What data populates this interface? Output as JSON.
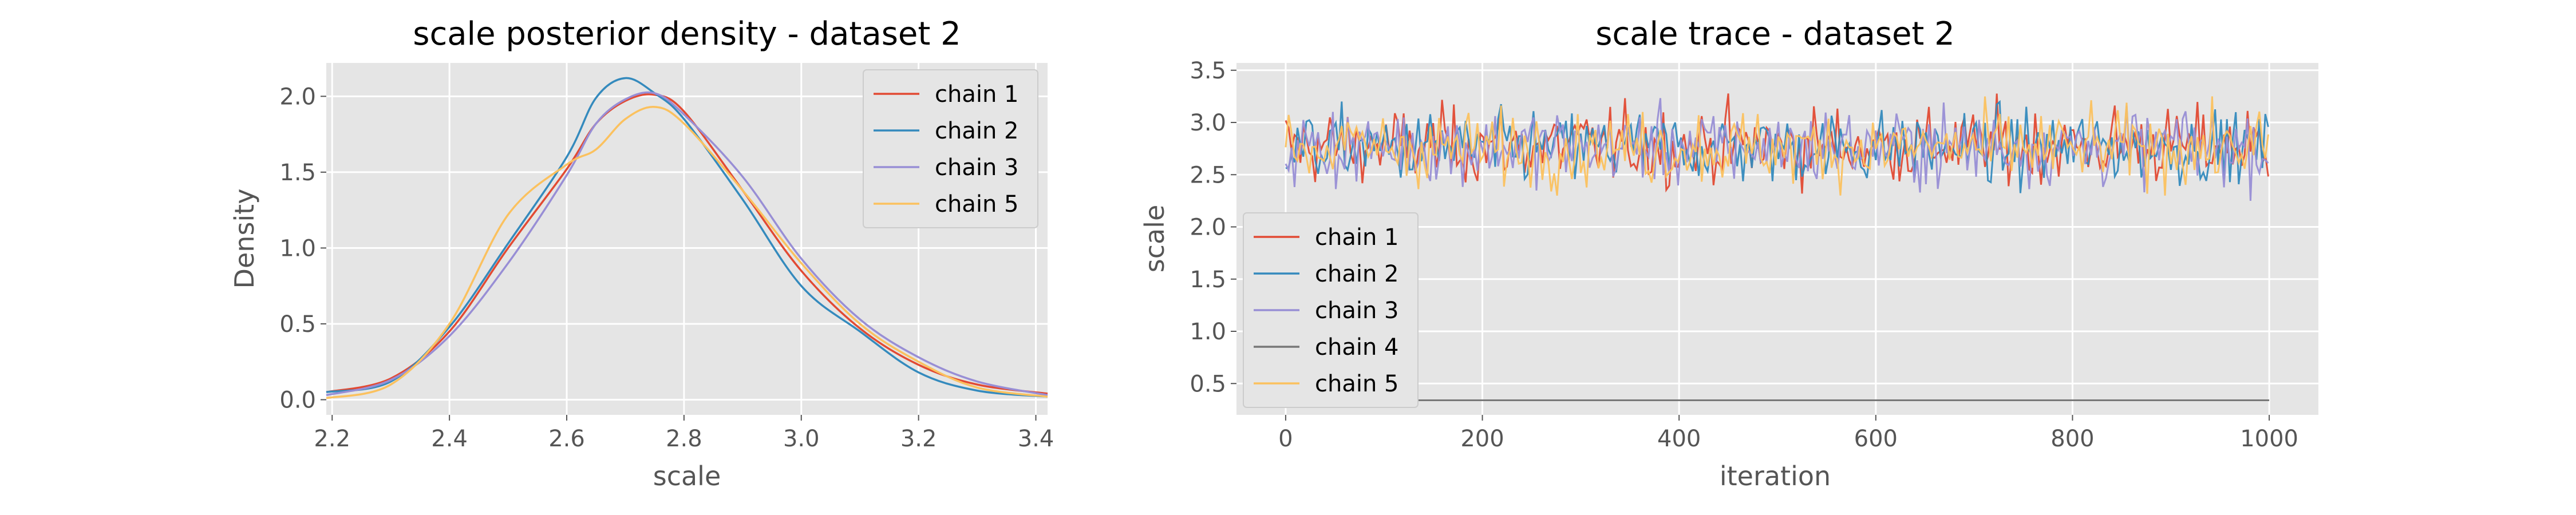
{
  "chart_data": [
    {
      "type": "line",
      "title": "scale posterior density - dataset 2",
      "xlabel": "scale",
      "ylabel": "Density",
      "xlim": [
        2.19,
        3.42
      ],
      "ylim": [
        -0.1,
        2.22
      ],
      "xticks": [
        "2.2",
        "2.4",
        "2.6",
        "2.8",
        "3.0",
        "3.2",
        "3.4"
      ],
      "yticks": [
        "0.0",
        "0.5",
        "1.0",
        "1.5",
        "2.0"
      ],
      "grid": true,
      "legend": "top-right",
      "series": [
        {
          "name": "chain 1",
          "color": "#E24A33",
          "x": [
            2.19,
            2.3,
            2.4,
            2.5,
            2.6,
            2.65,
            2.7,
            2.75,
            2.8,
            2.9,
            3.0,
            3.1,
            3.2,
            3.3,
            3.42
          ],
          "y": [
            0.05,
            0.14,
            0.45,
            1.0,
            1.52,
            1.82,
            1.97,
            2.01,
            1.9,
            1.38,
            0.85,
            0.47,
            0.23,
            0.1,
            0.04
          ]
        },
        {
          "name": "chain 2",
          "color": "#348ABD",
          "x": [
            2.19,
            2.3,
            2.4,
            2.5,
            2.6,
            2.65,
            2.7,
            2.75,
            2.8,
            2.9,
            3.0,
            3.1,
            3.2,
            3.3,
            3.42
          ],
          "y": [
            0.05,
            0.12,
            0.48,
            1.03,
            1.6,
            1.99,
            2.12,
            2.02,
            1.85,
            1.32,
            0.75,
            0.45,
            0.18,
            0.06,
            0.02
          ]
        },
        {
          "name": "chain 3",
          "color": "#988ED5",
          "x": [
            2.19,
            2.3,
            2.4,
            2.5,
            2.6,
            2.65,
            2.7,
            2.75,
            2.8,
            2.9,
            3.0,
            3.1,
            3.2,
            3.3,
            3.42
          ],
          "y": [
            0.03,
            0.13,
            0.42,
            0.9,
            1.48,
            1.82,
            1.98,
            2.02,
            1.88,
            1.47,
            0.93,
            0.53,
            0.28,
            0.12,
            0.03
          ]
        },
        {
          "name": "chain 5",
          "color": "#FBC15E",
          "x": [
            2.19,
            2.3,
            2.4,
            2.5,
            2.6,
            2.65,
            2.7,
            2.75,
            2.8,
            2.9,
            3.0,
            3.1,
            3.2,
            3.3,
            3.42
          ],
          "y": [
            0.01,
            0.1,
            0.5,
            1.22,
            1.55,
            1.65,
            1.85,
            1.93,
            1.82,
            1.38,
            0.9,
            0.5,
            0.25,
            0.08,
            0.02
          ]
        }
      ]
    },
    {
      "type": "line",
      "title": "scale trace - dataset 2",
      "xlabel": "iteration",
      "ylabel": "scale",
      "xlim": [
        -50,
        1050
      ],
      "ylim": [
        0.2,
        3.57
      ],
      "xticks": [
        "0",
        "200",
        "400",
        "600",
        "800",
        "1000"
      ],
      "yticks": [
        "0.5",
        "1.0",
        "1.5",
        "2.0",
        "2.5",
        "3.0",
        "3.5"
      ],
      "grid": true,
      "legend": "lower-left",
      "iterations": [
        0,
        1000
      ],
      "series": [
        {
          "name": "chain 1",
          "color": "#E24A33",
          "mean": 2.78,
          "sd": 0.2,
          "min": 2.22,
          "max": 3.35
        },
        {
          "name": "chain 2",
          "color": "#348ABD",
          "mean": 2.76,
          "sd": 0.19,
          "min": 2.22,
          "max": 3.43
        },
        {
          "name": "chain 3",
          "color": "#988ED5",
          "mean": 2.77,
          "sd": 0.2,
          "min": 2.25,
          "max": 3.3
        },
        {
          "name": "chain 4",
          "color": "#777777",
          "constant": 0.34
        },
        {
          "name": "chain 5",
          "color": "#FBC15E",
          "mean": 2.76,
          "sd": 0.19,
          "min": 2.3,
          "max": 3.25
        }
      ]
    }
  ]
}
